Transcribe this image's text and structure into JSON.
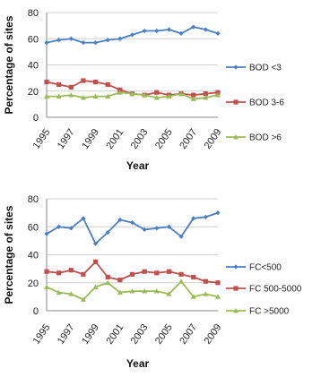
{
  "chart_data": [
    {
      "type": "line",
      "ylabel": "Percentage of sites",
      "xlabel": "Year",
      "ylim": [
        0,
        80
      ],
      "yticks": [
        0,
        20,
        40,
        60,
        80
      ],
      "x": [
        1995,
        1996,
        1997,
        1998,
        1999,
        2000,
        2001,
        2002,
        2003,
        2004,
        2005,
        2006,
        2007,
        2008,
        2009
      ],
      "xtick_labels": [
        "1995",
        "1997",
        "1999",
        "2001",
        "2003",
        "2005",
        "2007",
        "2009"
      ],
      "grid": true,
      "legend_position": "right",
      "series": [
        {
          "name": "BOD <3",
          "color": "#4a7fc1",
          "marker": "diamond",
          "values": [
            57,
            59,
            60,
            57,
            57,
            59,
            60,
            63,
            66,
            66,
            67,
            64,
            69,
            67,
            64
          ]
        },
        {
          "name": "BOD 3-6",
          "color": "#c0504d",
          "marker": "square",
          "values": [
            27,
            25,
            23,
            28,
            27,
            25,
            21,
            18,
            17,
            19,
            17,
            18,
            17,
            18,
            19
          ]
        },
        {
          "name": "BOD >6",
          "color": "#9bbb59",
          "marker": "triangle",
          "values": [
            16,
            16,
            17,
            15,
            16,
            16,
            19,
            18,
            17,
            15,
            16,
            18,
            14,
            15,
            17
          ]
        }
      ]
    },
    {
      "type": "line",
      "ylabel": "Percentage of sites",
      "xlabel": "Year",
      "ylim": [
        0,
        80
      ],
      "yticks": [
        0,
        20,
        40,
        60,
        80
      ],
      "x": [
        1995,
        1996,
        1997,
        1998,
        1999,
        2000,
        2001,
        2002,
        2003,
        2004,
        2005,
        2006,
        2007,
        2008,
        2009
      ],
      "xtick_labels": [
        "1995",
        "1997",
        "1999",
        "2001",
        "2003",
        "2005",
        "2007",
        "2009"
      ],
      "grid": true,
      "legend_position": "right",
      "series": [
        {
          "name": "FC<500",
          "color": "#4a7fc1",
          "marker": "diamond",
          "values": [
            55,
            60,
            59,
            66,
            48,
            56,
            65,
            63,
            58,
            59,
            60,
            53,
            66,
            67,
            70
          ]
        },
        {
          "name": "FC 500-5000",
          "color": "#c0504d",
          "marker": "square",
          "values": [
            28,
            27,
            29,
            26,
            35,
            24,
            22,
            26,
            28,
            27,
            28,
            26,
            24,
            21,
            20
          ]
        },
        {
          "name": "FC >5000",
          "color": "#9bbb59",
          "marker": "triangle",
          "values": [
            17,
            13,
            12,
            8,
            17,
            20,
            13,
            14,
            14,
            14,
            12,
            21,
            10,
            12,
            10
          ]
        }
      ]
    }
  ]
}
